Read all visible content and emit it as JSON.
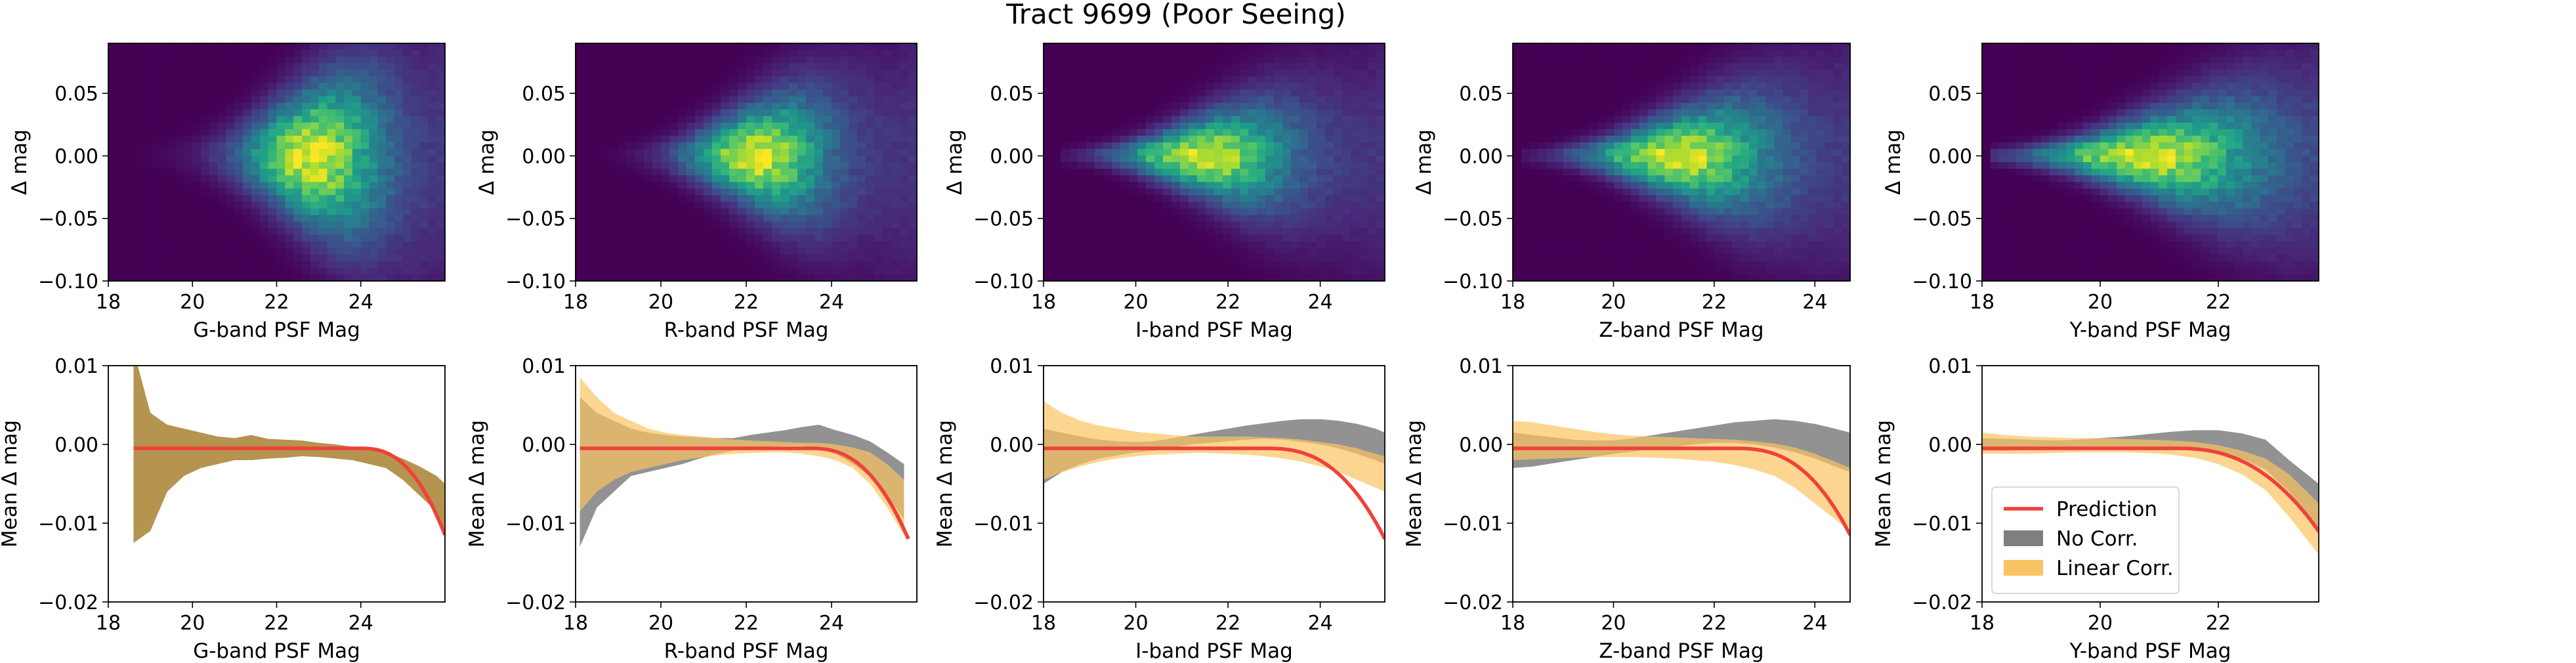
{
  "figure": {
    "title": "Tract 9699 (Poor Seeing)"
  },
  "colors": {
    "prediction": "#f0413a",
    "no_corr": "#7f7f7f",
    "linear_corr": "#fbc463",
    "overlap": "#b59450"
  },
  "legend": {
    "placement": "lower-left",
    "entries": [
      "Prediction",
      "No Corr.",
      "Linear Corr."
    ]
  },
  "chart_data": [
    {
      "type": "heatmap",
      "colormap": "viridis",
      "xlabel": "G-band PSF Mag",
      "ylabel": "Δ mag",
      "xlim": [
        18,
        26
      ],
      "ylim": [
        -0.1,
        0.09
      ],
      "xticks": [
        18,
        20,
        22,
        24
      ],
      "yticks": [
        -0.1,
        -0.05,
        0.0,
        0.05
      ],
      "ytick_labels": [
        "−0.10",
        "−0.05",
        "0.00",
        "0.05"
      ],
      "density": {
        "peak_x": 22.8,
        "x_start": 18.5,
        "x_end": 26,
        "spread_start": 0.004,
        "spread_end": 0.055,
        "falloff": 1.6
      }
    },
    {
      "type": "heatmap",
      "colormap": "viridis",
      "xlabel": "R-band PSF Mag",
      "ylabel": "Δ mag",
      "xlim": [
        18,
        26
      ],
      "ylim": [
        -0.1,
        0.09
      ],
      "xticks": [
        18,
        20,
        22,
        24
      ],
      "yticks": [
        -0.1,
        -0.05,
        0.0,
        0.05
      ],
      "ytick_labels": [
        "−0.10",
        "−0.05",
        "0.00",
        "0.05"
      ],
      "density": {
        "peak_x": 22.2,
        "x_start": 18.6,
        "x_end": 26,
        "spread_start": 0.004,
        "spread_end": 0.05,
        "falloff": 1.6
      }
    },
    {
      "type": "heatmap",
      "colormap": "viridis",
      "xlabel": "I-band PSF Mag",
      "ylabel": "Δ mag",
      "xlim": [
        18,
        25.4
      ],
      "ylim": [
        -0.1,
        0.09
      ],
      "xticks": [
        18,
        20,
        22,
        24
      ],
      "yticks": [
        -0.1,
        -0.05,
        0.0,
        0.05
      ],
      "ytick_labels": [
        "−0.10",
        "−0.05",
        "0.00",
        "0.05"
      ],
      "density": {
        "peak_x": 21.4,
        "x_start": 18.4,
        "x_end": 25.4,
        "spread_start": 0.003,
        "spread_end": 0.045,
        "falloff": 1.8
      }
    },
    {
      "type": "heatmap",
      "colormap": "viridis",
      "xlabel": "Z-band PSF Mag",
      "ylabel": "Δ mag",
      "xlim": [
        18,
        24.7
      ],
      "ylim": [
        -0.1,
        0.09
      ],
      "xticks": [
        18,
        20,
        22,
        24
      ],
      "yticks": [
        -0.1,
        -0.05,
        0.0,
        0.05
      ],
      "ytick_labels": [
        "−0.10",
        "−0.05",
        "0.00",
        "0.05"
      ],
      "density": {
        "peak_x": 21.2,
        "x_start": 18.2,
        "x_end": 24.7,
        "spread_start": 0.003,
        "spread_end": 0.045,
        "falloff": 1.8
      }
    },
    {
      "type": "heatmap",
      "colormap": "viridis",
      "xlabel": "Y-band PSF Mag",
      "ylabel": "Δ mag",
      "xlim": [
        18,
        23.7
      ],
      "ylim": [
        -0.1,
        0.09
      ],
      "xticks": [
        18,
        20,
        22
      ],
      "yticks": [
        -0.1,
        -0.05,
        0.0,
        0.05
      ],
      "ytick_labels": [
        "−0.10",
        "−0.05",
        "0.00",
        "0.05"
      ],
      "density": {
        "peak_x": 20.7,
        "x_start": 18.1,
        "x_end": 23.7,
        "spread_start": 0.003,
        "spread_end": 0.04,
        "falloff": 1.9
      }
    },
    {
      "type": "area",
      "xlabel": "G-band PSF Mag",
      "ylabel": "Mean Δ mag",
      "xlim": [
        18,
        26
      ],
      "ylim": [
        -0.02,
        0.01
      ],
      "xticks": [
        18,
        20,
        22,
        24
      ],
      "yticks": [
        -0.02,
        -0.01,
        0.0,
        0.01
      ],
      "ytick_labels": [
        "−0.02",
        "−0.01",
        "0.00",
        "0.01"
      ],
      "series": [
        {
          "name": "No Corr.",
          "x": [
            18.6,
            19.0,
            19.4,
            19.8,
            20.2,
            20.6,
            21.0,
            21.4,
            21.8,
            22.2,
            22.6,
            23.0,
            23.4,
            23.8,
            24.2,
            24.6,
            25.0,
            25.4,
            25.8,
            26.0
          ],
          "upper": [
            0.012,
            0.004,
            0.0025,
            0.002,
            0.0015,
            0.001,
            0.0008,
            0.0012,
            0.0007,
            0.0006,
            0.0005,
            0.0002,
            0.0,
            -0.0003,
            -0.0006,
            -0.001,
            -0.0018,
            -0.0028,
            -0.004,
            -0.005
          ],
          "lower": [
            -0.0125,
            -0.011,
            -0.006,
            -0.004,
            -0.003,
            -0.0025,
            -0.002,
            -0.002,
            -0.0018,
            -0.0017,
            -0.0015,
            -0.0016,
            -0.0018,
            -0.002,
            -0.0025,
            -0.003,
            -0.0045,
            -0.0065,
            -0.0085,
            -0.011
          ]
        },
        {
          "name": "Linear Corr.",
          "x": [
            18.6,
            19.0,
            19.4,
            19.8,
            20.2,
            20.6,
            21.0,
            21.4,
            21.8,
            22.2,
            22.6,
            23.0,
            23.4,
            23.8,
            24.2,
            24.6,
            25.0,
            25.4,
            25.8,
            26.0
          ],
          "upper": [
            0.012,
            0.004,
            0.0025,
            0.002,
            0.0015,
            0.001,
            0.0008,
            0.0012,
            0.0007,
            0.0006,
            0.0005,
            0.0002,
            0.0,
            -0.0003,
            -0.0006,
            -0.001,
            -0.0018,
            -0.0028,
            -0.004,
            -0.005
          ],
          "lower": [
            -0.0125,
            -0.011,
            -0.006,
            -0.004,
            -0.003,
            -0.0025,
            -0.002,
            -0.002,
            -0.0018,
            -0.0017,
            -0.0015,
            -0.0016,
            -0.0018,
            -0.002,
            -0.0025,
            -0.003,
            -0.0045,
            -0.0065,
            -0.0085,
            -0.011
          ]
        },
        {
          "name": "Prediction",
          "x_start": 18.6,
          "x_end": 26.0,
          "offset": -0.0005,
          "amplitude": -0.011,
          "threshold": 24.0,
          "power": 2.5
        }
      ]
    },
    {
      "type": "area",
      "xlabel": "R-band PSF Mag",
      "ylabel": "Mean Δ mag",
      "xlim": [
        18,
        26
      ],
      "ylim": [
        -0.02,
        0.01
      ],
      "xticks": [
        18,
        20,
        22,
        24
      ],
      "yticks": [
        -0.02,
        -0.01,
        0.0,
        0.01
      ],
      "ytick_labels": [
        "−0.02",
        "−0.01",
        "0.00",
        "0.01"
      ],
      "series": [
        {
          "name": "No Corr.",
          "x": [
            18.1,
            18.5,
            18.9,
            19.3,
            19.7,
            20.1,
            20.5,
            20.9,
            21.3,
            21.7,
            22.1,
            22.5,
            22.9,
            23.3,
            23.7,
            24.1,
            24.5,
            24.9,
            25.3,
            25.7
          ],
          "upper": [
            0.006,
            0.004,
            0.003,
            0.002,
            0.0015,
            0.0012,
            0.001,
            0.0009,
            0.0008,
            0.0008,
            0.0012,
            0.0015,
            0.0018,
            0.0022,
            0.0025,
            0.0018,
            0.0012,
            0.0004,
            -0.001,
            -0.0025
          ],
          "lower": [
            -0.013,
            -0.008,
            -0.006,
            -0.004,
            -0.0035,
            -0.003,
            -0.0025,
            -0.0018,
            -0.0012,
            -0.0008,
            -0.0005,
            -0.0003,
            -0.0002,
            -0.0002,
            -0.0006,
            -0.0012,
            -0.0025,
            -0.004,
            -0.0065,
            -0.0095
          ]
        },
        {
          "name": "Linear Corr.",
          "x": [
            18.1,
            18.5,
            18.9,
            19.3,
            19.7,
            20.1,
            20.5,
            20.9,
            21.3,
            21.7,
            22.1,
            22.5,
            22.9,
            23.3,
            23.7,
            24.1,
            24.5,
            24.9,
            25.3,
            25.7
          ],
          "upper": [
            0.0085,
            0.006,
            0.004,
            0.003,
            0.002,
            0.0015,
            0.0012,
            0.001,
            0.0008,
            0.0006,
            0.0005,
            0.0004,
            0.0003,
            0.0002,
            0.0002,
            0.0,
            -0.0004,
            -0.001,
            -0.0025,
            -0.0045
          ],
          "lower": [
            -0.0085,
            -0.006,
            -0.0045,
            -0.0035,
            -0.003,
            -0.0025,
            -0.002,
            -0.0017,
            -0.0014,
            -0.0012,
            -0.0011,
            -0.001,
            -0.001,
            -0.0012,
            -0.0015,
            -0.002,
            -0.003,
            -0.005,
            -0.008,
            -0.0115
          ]
        },
        {
          "name": "Prediction",
          "x_start": 18.1,
          "x_end": 25.8,
          "offset": -0.0005,
          "amplitude": -0.0115,
          "threshold": 23.5,
          "power": 2.5
        }
      ]
    },
    {
      "type": "area",
      "xlabel": "I-band PSF Mag",
      "ylabel": "Mean Δ mag",
      "xlim": [
        18,
        25.4
      ],
      "ylim": [
        -0.02,
        0.01
      ],
      "xticks": [
        18,
        20,
        22,
        24
      ],
      "yticks": [
        -0.02,
        -0.01,
        0.0,
        0.01
      ],
      "ytick_labels": [
        "−0.02",
        "−0.01",
        "0.00",
        "0.01"
      ],
      "series": [
        {
          "name": "No Corr.",
          "x": [
            18.0,
            18.4,
            18.8,
            19.2,
            19.6,
            20.0,
            20.4,
            20.8,
            21.2,
            21.6,
            22.0,
            22.4,
            22.8,
            23.2,
            23.6,
            24.0,
            24.4,
            24.8,
            25.2,
            25.4
          ],
          "upper": [
            0.002,
            0.0015,
            0.001,
            0.0006,
            0.0004,
            0.0003,
            0.0004,
            0.0008,
            0.0012,
            0.0016,
            0.002,
            0.0024,
            0.0027,
            0.003,
            0.0032,
            0.0032,
            0.003,
            0.0026,
            0.002,
            0.0015
          ],
          "lower": [
            -0.005,
            -0.0035,
            -0.0025,
            -0.0018,
            -0.0014,
            -0.001,
            -0.0008,
            -0.0004,
            0.0,
            0.0002,
            0.0004,
            0.0006,
            0.0007,
            0.0006,
            0.0003,
            0.0,
            -0.0005,
            -0.0012,
            -0.002,
            -0.0025
          ]
        },
        {
          "name": "Linear Corr.",
          "x": [
            18.0,
            18.4,
            18.8,
            19.2,
            19.6,
            20.0,
            20.4,
            20.8,
            21.2,
            21.6,
            22.0,
            22.4,
            22.8,
            23.2,
            23.6,
            24.0,
            24.4,
            24.8,
            25.2,
            25.4
          ],
          "upper": [
            0.0055,
            0.004,
            0.003,
            0.0024,
            0.002,
            0.0016,
            0.0014,
            0.0012,
            0.001,
            0.001,
            0.001,
            0.001,
            0.0009,
            0.0008,
            0.0006,
            0.0003,
            0.0,
            -0.0005,
            -0.0012,
            -0.0015
          ],
          "lower": [
            -0.0045,
            -0.0035,
            -0.0028,
            -0.0022,
            -0.0018,
            -0.0015,
            -0.0013,
            -0.0012,
            -0.0011,
            -0.0011,
            -0.0012,
            -0.0013,
            -0.0015,
            -0.0018,
            -0.0022,
            -0.0028,
            -0.0035,
            -0.0045,
            -0.0055,
            -0.006
          ]
        },
        {
          "name": "Prediction",
          "x_start": 18.0,
          "x_end": 25.4,
          "offset": -0.0005,
          "amplitude": -0.0115,
          "threshold": 22.8,
          "power": 2.6
        }
      ]
    },
    {
      "type": "area",
      "xlabel": "Z-band PSF Mag",
      "ylabel": "Mean Δ mag",
      "xlim": [
        18,
        24.7
      ],
      "ylim": [
        -0.02,
        0.01
      ],
      "xticks": [
        18,
        20,
        22,
        24
      ],
      "yticks": [
        -0.02,
        -0.01,
        0.0,
        0.01
      ],
      "ytick_labels": [
        "−0.02",
        "−0.01",
        "0.00",
        "0.01"
      ],
      "series": [
        {
          "name": "No Corr.",
          "x": [
            18.0,
            18.4,
            18.8,
            19.2,
            19.6,
            20.0,
            20.4,
            20.8,
            21.2,
            21.6,
            22.0,
            22.4,
            22.8,
            23.2,
            23.6,
            24.0,
            24.4,
            24.7
          ],
          "upper": [
            0.0015,
            0.0012,
            0.0009,
            0.0006,
            0.0005,
            0.0005,
            0.0008,
            0.0012,
            0.0016,
            0.002,
            0.0024,
            0.0028,
            0.003,
            0.0032,
            0.003,
            0.0026,
            0.002,
            0.0015
          ],
          "lower": [
            -0.003,
            -0.0028,
            -0.0024,
            -0.002,
            -0.0016,
            -0.0012,
            -0.0009,
            -0.0006,
            -0.0003,
            0.0,
            0.0002,
            0.0002,
            0.0,
            -0.0004,
            -0.001,
            -0.0018,
            -0.0028,
            -0.0035
          ]
        },
        {
          "name": "Linear Corr.",
          "x": [
            18.0,
            18.4,
            18.8,
            19.2,
            19.6,
            20.0,
            20.4,
            20.8,
            21.2,
            21.6,
            22.0,
            22.4,
            22.8,
            23.2,
            23.6,
            24.0,
            24.4,
            24.7
          ],
          "upper": [
            0.003,
            0.0028,
            0.0024,
            0.002,
            0.0016,
            0.0013,
            0.0011,
            0.001,
            0.0009,
            0.0008,
            0.0007,
            0.0006,
            0.0004,
            0.0001,
            -0.0004,
            -0.0012,
            -0.0022,
            -0.003
          ],
          "lower": [
            -0.002,
            -0.0019,
            -0.0018,
            -0.0017,
            -0.0016,
            -0.0016,
            -0.0016,
            -0.0017,
            -0.0018,
            -0.002,
            -0.0022,
            -0.0026,
            -0.0032,
            -0.004,
            -0.0055,
            -0.0075,
            -0.0095,
            -0.011
          ]
        },
        {
          "name": "Prediction",
          "x_start": 18.0,
          "x_end": 24.7,
          "offset": -0.0005,
          "amplitude": -0.011,
          "threshold": 22.4,
          "power": 2.6
        }
      ]
    },
    {
      "type": "area",
      "xlabel": "Y-band PSF Mag",
      "ylabel": "Mean Δ mag",
      "xlim": [
        18,
        23.7
      ],
      "ylim": [
        -0.02,
        0.01
      ],
      "xticks": [
        18,
        20,
        22
      ],
      "yticks": [
        -0.02,
        -0.01,
        0.0,
        0.01
      ],
      "ytick_labels": [
        "−0.02",
        "−0.01",
        "0.00",
        "0.01"
      ],
      "series": [
        {
          "name": "No Corr.",
          "x": [
            18.0,
            18.4,
            18.8,
            19.2,
            19.6,
            20.0,
            20.4,
            20.8,
            21.2,
            21.6,
            22.0,
            22.4,
            22.8,
            23.2,
            23.7
          ],
          "upper": [
            0.0008,
            0.0007,
            0.0006,
            0.0005,
            0.0006,
            0.0008,
            0.001,
            0.0013,
            0.0016,
            0.0018,
            0.0018,
            0.0014,
            0.0006,
            -0.002,
            -0.005
          ],
          "lower": [
            -0.0008,
            -0.0008,
            -0.0007,
            -0.0006,
            -0.0005,
            -0.0004,
            -0.0003,
            -0.0003,
            -0.0004,
            -0.0006,
            -0.001,
            -0.0018,
            -0.0032,
            -0.006,
            -0.0115
          ]
        },
        {
          "name": "Linear Corr.",
          "x": [
            18.0,
            18.4,
            18.8,
            19.2,
            19.6,
            20.0,
            20.4,
            20.8,
            21.2,
            21.6,
            22.0,
            22.4,
            22.8,
            23.2,
            23.7
          ],
          "upper": [
            0.0015,
            0.0012,
            0.001,
            0.0009,
            0.0008,
            0.0008,
            0.0007,
            0.0006,
            0.0005,
            0.0003,
            -0.0001,
            -0.0008,
            -0.0018,
            -0.0038,
            -0.0075
          ],
          "lower": [
            -0.0012,
            -0.0012,
            -0.0012,
            -0.0011,
            -0.001,
            -0.001,
            -0.001,
            -0.0011,
            -0.0013,
            -0.0017,
            -0.0025,
            -0.0038,
            -0.0058,
            -0.0092,
            -0.014
          ]
        },
        {
          "name": "Prediction",
          "x_start": 18.0,
          "x_end": 23.7,
          "offset": -0.0005,
          "amplitude": -0.0105,
          "threshold": 21.3,
          "power": 2.4
        }
      ]
    }
  ]
}
